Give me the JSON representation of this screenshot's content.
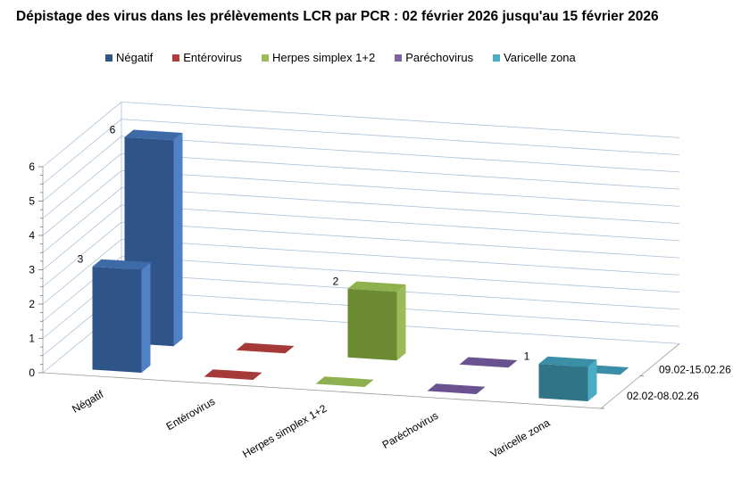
{
  "chart_data": {
    "type": "bar",
    "subtype": "3d-column",
    "title": "Dépistage des virus dans les prélèvements LCR par PCR : 02 février 2026 jusqu'au   15 février 2026",
    "categories": [
      "Négatif",
      "Entérovirus",
      "Herpes simplex 1+2",
      "Paréchovirus",
      "Varicelle zona"
    ],
    "series": [
      {
        "name": "02.02-08.02.26",
        "values": [
          3,
          0,
          0,
          0,
          1
        ]
      },
      {
        "name": "09.02-15.02.26",
        "values": [
          6,
          0,
          2,
          0,
          0
        ]
      }
    ],
    "colors": [
      "#3a64a0",
      "#b23c3a",
      "#7f9e3e",
      "#6b5290",
      "#3b93ab"
    ],
    "legend": {
      "position": "top",
      "entries": [
        "Négatif",
        "Entérovirus",
        "Herpes simplex 1+2",
        "Paréchovirus",
        "Varicelle zona"
      ]
    },
    "ylim": [
      0,
      6
    ],
    "yticks": [
      "0",
      "1",
      "2",
      "3",
      "4",
      "5",
      "6"
    ],
    "grid": true
  }
}
